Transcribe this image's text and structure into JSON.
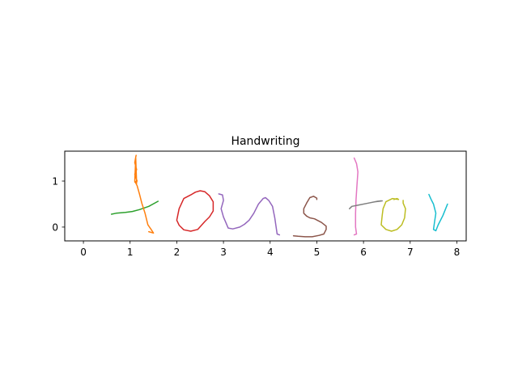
{
  "chart_data": {
    "type": "line",
    "title": "Handwriting",
    "xlabel": "",
    "ylabel": "",
    "xlim": [
      -0.4,
      8.2
    ],
    "ylim": [
      -0.3,
      1.65
    ],
    "xticks": [
      0,
      1,
      2,
      3,
      4,
      5,
      6,
      7,
      8
    ],
    "yticks": [
      0,
      1
    ],
    "grid": false,
    "legend": "none",
    "series": [
      {
        "color": "#2ca02c",
        "points": [
          [
            0.6,
            0.28
          ],
          [
            0.7,
            0.3
          ],
          [
            0.9,
            0.32
          ],
          [
            1.05,
            0.34
          ],
          [
            1.2,
            0.38
          ],
          [
            1.4,
            0.45
          ],
          [
            1.6,
            0.56
          ]
        ]
      },
      {
        "color": "#ff7f0e",
        "points": [
          [
            1.13,
            1.56
          ],
          [
            1.12,
            1.52
          ],
          [
            1.1,
            1.4
          ],
          [
            1.14,
            1.25
          ],
          [
            1.1,
            1.15
          ],
          [
            1.15,
            1.0
          ],
          [
            1.1,
            0.98
          ],
          [
            1.14,
            0.95
          ],
          [
            1.12,
            1.5
          ],
          [
            1.1,
            1.0
          ],
          [
            1.15,
            0.9
          ],
          [
            1.2,
            0.72
          ],
          [
            1.25,
            0.52
          ],
          [
            1.32,
            0.3
          ],
          [
            1.38,
            0.05
          ],
          [
            1.45,
            -0.05
          ],
          [
            1.5,
            -0.13
          ],
          [
            1.4,
            -0.1
          ]
        ]
      },
      {
        "color": "#d62728",
        "points": [
          [
            2.3,
            0.7
          ],
          [
            2.4,
            0.76
          ],
          [
            2.5,
            0.79
          ],
          [
            2.6,
            0.77
          ],
          [
            2.7,
            0.68
          ],
          [
            2.78,
            0.55
          ],
          [
            2.78,
            0.35
          ],
          [
            2.7,
            0.22
          ],
          [
            2.6,
            0.12
          ],
          [
            2.45,
            -0.05
          ],
          [
            2.3,
            -0.09
          ],
          [
            2.15,
            -0.06
          ],
          [
            2.05,
            0.04
          ],
          [
            2.0,
            0.15
          ],
          [
            2.05,
            0.4
          ],
          [
            2.15,
            0.62
          ],
          [
            2.3,
            0.7
          ]
        ]
      },
      {
        "color": "#9467bd",
        "points": [
          [
            2.9,
            0.72
          ],
          [
            2.98,
            0.7
          ],
          [
            3.0,
            0.58
          ],
          [
            2.95,
            0.4
          ],
          [
            3.0,
            0.22
          ],
          [
            3.05,
            0.1
          ],
          [
            3.1,
            -0.02
          ],
          [
            3.2,
            -0.04
          ],
          [
            3.35,
            0.0
          ],
          [
            3.45,
            0.06
          ],
          [
            3.55,
            0.15
          ],
          [
            3.65,
            0.3
          ],
          [
            3.75,
            0.5
          ],
          [
            3.85,
            0.62
          ],
          [
            3.9,
            0.64
          ],
          [
            3.97,
            0.58
          ],
          [
            4.05,
            0.45
          ],
          [
            4.1,
            0.2
          ],
          [
            4.15,
            -0.15
          ],
          [
            4.2,
            -0.17
          ]
        ]
      },
      {
        "color": "#8c564b",
        "points": [
          [
            4.5,
            -0.19
          ],
          [
            4.6,
            -0.2
          ],
          [
            4.75,
            -0.21
          ],
          [
            4.9,
            -0.21
          ],
          [
            5.05,
            -0.18
          ],
          [
            5.15,
            -0.15
          ],
          [
            5.2,
            -0.05
          ],
          [
            5.2,
            0.02
          ],
          [
            5.1,
            0.1
          ],
          [
            4.95,
            0.18
          ],
          [
            4.85,
            0.2
          ],
          [
            4.78,
            0.24
          ],
          [
            4.72,
            0.3
          ],
          [
            4.72,
            0.4
          ],
          [
            4.78,
            0.52
          ],
          [
            4.85,
            0.64
          ],
          [
            4.93,
            0.67
          ],
          [
            5.0,
            0.63
          ],
          [
            5.0,
            0.6
          ]
        ]
      },
      {
        "color": "#e377c2",
        "points": [
          [
            5.8,
            1.5
          ],
          [
            5.85,
            1.38
          ],
          [
            5.88,
            1.2
          ],
          [
            5.86,
            0.9
          ],
          [
            5.84,
            0.6
          ],
          [
            5.83,
            0.3
          ],
          [
            5.83,
            0.0
          ],
          [
            5.85,
            -0.15
          ],
          [
            5.8,
            -0.17
          ]
        ]
      },
      {
        "color": "#7f7f7f",
        "points": [
          [
            5.7,
            0.4
          ],
          [
            5.75,
            0.45
          ],
          [
            5.9,
            0.48
          ],
          [
            6.1,
            0.52
          ],
          [
            6.3,
            0.56
          ],
          [
            6.38,
            0.57
          ],
          [
            6.25,
            0.55
          ],
          [
            6.4,
            0.57
          ]
        ]
      },
      {
        "color": "#bcbd22",
        "points": [
          [
            6.65,
            0.6
          ],
          [
            6.72,
            0.62
          ],
          [
            6.75,
            0.6
          ],
          [
            6.62,
            0.62
          ],
          [
            6.48,
            0.55
          ],
          [
            6.42,
            0.4
          ],
          [
            6.4,
            0.25
          ],
          [
            6.38,
            0.05
          ],
          [
            6.48,
            -0.05
          ],
          [
            6.6,
            -0.09
          ],
          [
            6.72,
            -0.05
          ],
          [
            6.82,
            0.05
          ],
          [
            6.88,
            0.2
          ],
          [
            6.9,
            0.4
          ],
          [
            6.85,
            0.52
          ],
          [
            6.85,
            0.58
          ]
        ]
      },
      {
        "color": "#17becf",
        "points": [
          [
            7.4,
            0.71
          ],
          [
            7.45,
            0.6
          ],
          [
            7.5,
            0.5
          ],
          [
            7.55,
            0.3
          ],
          [
            7.52,
            0.1
          ],
          [
            7.5,
            -0.05
          ],
          [
            7.55,
            -0.08
          ],
          [
            7.6,
            0.05
          ],
          [
            7.7,
            0.25
          ],
          [
            7.8,
            0.5
          ]
        ]
      }
    ]
  }
}
